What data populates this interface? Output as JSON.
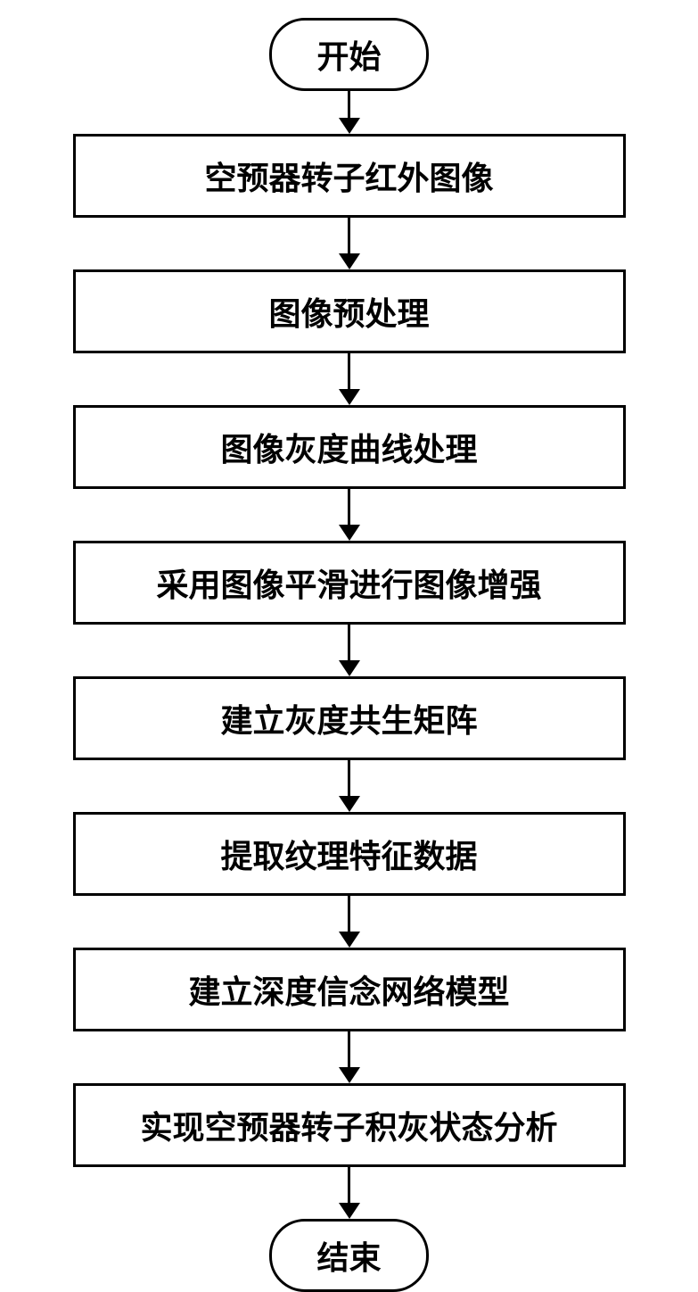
{
  "flowchart": {
    "type": "flowchart",
    "background_color": "#ffffff",
    "border_color": "#000000",
    "border_width": 3,
    "text_color": "#000000",
    "font_size": 36,
    "font_weight": "bold",
    "terminal_border_radius": 40,
    "process_min_width": 620,
    "arrow_head_size": 18,
    "nodes": [
      {
        "id": "start",
        "shape": "terminal",
        "label": "开始"
      },
      {
        "id": "step1",
        "shape": "process",
        "label": "空预器转子红外图像"
      },
      {
        "id": "step2",
        "shape": "process",
        "label": "图像预处理"
      },
      {
        "id": "step3",
        "shape": "process",
        "label": "图像灰度曲线处理"
      },
      {
        "id": "step4",
        "shape": "process",
        "label": "采用图像平滑进行图像增强"
      },
      {
        "id": "step5",
        "shape": "process",
        "label": "建立灰度共生矩阵"
      },
      {
        "id": "step6",
        "shape": "process",
        "label": "提取纹理特征数据"
      },
      {
        "id": "step7",
        "shape": "process",
        "label": "建立深度信念网络模型"
      },
      {
        "id": "step8",
        "shape": "process",
        "label": "实现空预器转子积灰状态分析"
      },
      {
        "id": "end",
        "shape": "terminal",
        "label": "结束"
      }
    ],
    "edges": [
      {
        "from": "start",
        "to": "step1",
        "length": 30
      },
      {
        "from": "step1",
        "to": "step2",
        "length": 40
      },
      {
        "from": "step2",
        "to": "step3",
        "length": 40
      },
      {
        "from": "step3",
        "to": "step4",
        "length": 40
      },
      {
        "from": "step4",
        "to": "step5",
        "length": 40
      },
      {
        "from": "step5",
        "to": "step6",
        "length": 40
      },
      {
        "from": "step6",
        "to": "step7",
        "length": 40
      },
      {
        "from": "step7",
        "to": "step8",
        "length": 40
      },
      {
        "from": "step8",
        "to": "end",
        "length": 40
      }
    ]
  }
}
